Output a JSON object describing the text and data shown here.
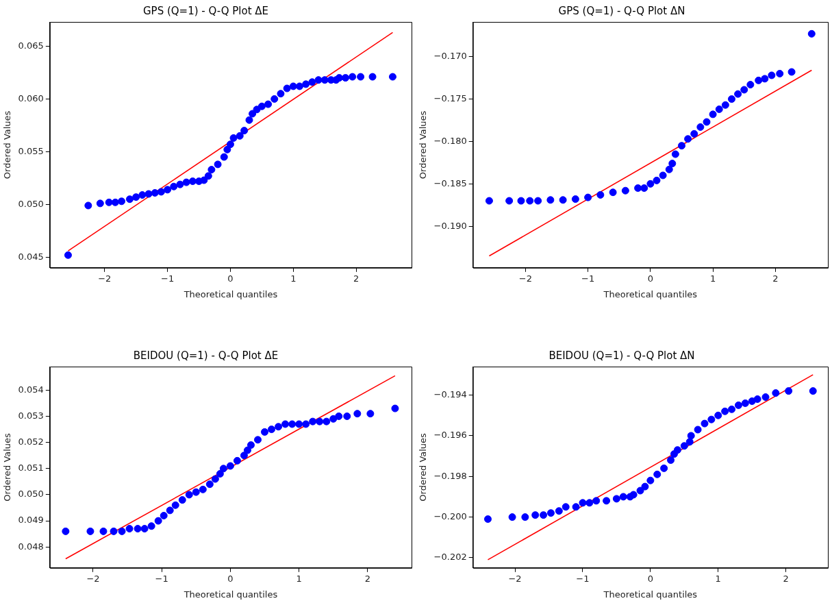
{
  "chart_data": [
    {
      "type": "scatter",
      "title": "GPS (Q=1) - Q-Q Plot ΔE",
      "xlabel": "Theoretical quantiles",
      "ylabel": "Ordered Values",
      "grid": false,
      "legend": false,
      "marker": "circle",
      "xlim": [
        -2.87,
        2.88
      ],
      "xticks": [
        -2,
        -1,
        0,
        1,
        2
      ],
      "ylim": [
        0.044,
        0.0673
      ],
      "yticks": [
        {
          "value": 0.045,
          "label": "0.045"
        },
        {
          "value": 0.05,
          "label": "0.050"
        },
        {
          "value": 0.055,
          "label": "0.055"
        },
        {
          "value": 0.06,
          "label": "0.060"
        },
        {
          "value": 0.065,
          "label": "0.065"
        }
      ],
      "series": [
        {
          "color": "#0000ff",
          "x": [
            -2.58,
            -2.26,
            -2.07,
            -1.93,
            -1.83,
            -1.73,
            -1.6,
            -1.5,
            -1.4,
            -1.3,
            -1.2,
            -1.1,
            -1.0,
            -0.9,
            -0.8,
            -0.7,
            -0.6,
            -0.5,
            -0.42,
            -0.35,
            -0.3,
            -0.2,
            -0.1,
            -0.05,
            0,
            0.05,
            0.15,
            0.22,
            0.3,
            0.35,
            0.42,
            0.5,
            0.6,
            0.7,
            0.8,
            0.9,
            1.0,
            1.1,
            1.2,
            1.3,
            1.4,
            1.5,
            1.6,
            1.68,
            1.73,
            1.83,
            1.94,
            2.07,
            2.26,
            2.58
          ],
          "values": [
            0.0452,
            0.0499,
            0.0501,
            0.0502,
            0.0502,
            0.0503,
            0.0505,
            0.0507,
            0.0509,
            0.051,
            0.0511,
            0.0512,
            0.0514,
            0.0517,
            0.0519,
            0.0521,
            0.0522,
            0.0522,
            0.0523,
            0.0527,
            0.0533,
            0.0538,
            0.0545,
            0.0552,
            0.0557,
            0.0563,
            0.0565,
            0.057,
            0.058,
            0.0586,
            0.059,
            0.0593,
            0.0595,
            0.06,
            0.0605,
            0.061,
            0.0612,
            0.0612,
            0.0614,
            0.0616,
            0.0618,
            0.0618,
            0.0618,
            0.0618,
            0.062,
            0.062,
            0.0621,
            0.0621,
            0.0621,
            0.0621
          ]
        },
        {
          "type": "line",
          "marker": "none",
          "color": "#ff0000",
          "x": [
            -2.58,
            2.58
          ],
          "values": [
            0.0456,
            0.0663
          ]
        }
      ]
    },
    {
      "type": "scatter",
      "title": "GPS (Q=1) - Q-Q Plot ΔN",
      "xlabel": "Theoretical quantiles",
      "ylabel": "Ordered Values",
      "grid": false,
      "legend": false,
      "marker": "circle",
      "xlim": [
        -2.84,
        2.84
      ],
      "xticks": [
        -2,
        -1,
        0,
        1,
        2
      ],
      "ylim": [
        -0.1949,
        -0.1659
      ],
      "yticks": [
        {
          "value": -0.19,
          "label": "−0.190"
        },
        {
          "value": -0.185,
          "label": "−0.185"
        },
        {
          "value": -0.18,
          "label": "−0.180"
        },
        {
          "value": -0.175,
          "label": "−0.175"
        },
        {
          "value": -0.17,
          "label": "−0.170"
        }
      ],
      "series": [
        {
          "color": "#0000ff",
          "x": [
            -2.58,
            -2.26,
            -2.07,
            -1.93,
            -1.8,
            -1.6,
            -1.4,
            -1.2,
            -1.0,
            -0.8,
            -0.6,
            -0.4,
            -0.2,
            -0.1,
            0,
            0.1,
            0.2,
            0.3,
            0.35,
            0.4,
            0.5,
            0.6,
            0.7,
            0.8,
            0.9,
            1.0,
            1.1,
            1.2,
            1.3,
            1.4,
            1.5,
            1.6,
            1.73,
            1.83,
            1.94,
            2.07,
            2.26,
            2.58
          ],
          "values": [
            -0.187,
            -0.187,
            -0.187,
            -0.187,
            -0.187,
            -0.1869,
            -0.1869,
            -0.1868,
            -0.1866,
            -0.1863,
            -0.186,
            -0.1858,
            -0.1855,
            -0.1855,
            -0.185,
            -0.1846,
            -0.184,
            -0.1833,
            -0.1826,
            -0.1815,
            -0.1805,
            -0.1797,
            -0.1791,
            -0.1783,
            -0.1777,
            -0.1768,
            -0.1762,
            -0.1757,
            -0.175,
            -0.1744,
            -0.1739,
            -0.1733,
            -0.1728,
            -0.1726,
            -0.1722,
            -0.172,
            -0.1718,
            -0.1673
          ]
        },
        {
          "type": "line",
          "marker": "none",
          "color": "#ff0000",
          "x": [
            -2.58,
            2.58
          ],
          "values": [
            -0.1935,
            -0.1716
          ]
        }
      ]
    },
    {
      "type": "scatter",
      "title": "BEIDOU (Q=1) - Q-Q Plot ΔE",
      "xlabel": "Theoretical quantiles",
      "ylabel": "Ordered Values",
      "grid": false,
      "legend": false,
      "marker": "circle",
      "xlim": [
        -2.63,
        2.64
      ],
      "xticks": [
        -2,
        -1,
        0,
        1,
        2
      ],
      "ylim": [
        0.0472,
        0.0549
      ],
      "yticks": [
        0.048,
        0.049,
        {
          "value": 0.05,
          "label": "0.050"
        },
        0.051,
        0.052,
        0.053,
        0.054
      ],
      "series": [
        {
          "color": "#0000ff",
          "x": [
            -2.4,
            -2.04,
            -1.85,
            -1.7,
            -1.58,
            -1.47,
            -1.35,
            -1.25,
            -1.15,
            -1.05,
            -0.97,
            -0.88,
            -0.8,
            -0.7,
            -0.6,
            -0.5,
            -0.4,
            -0.3,
            -0.22,
            -0.15,
            -0.1,
            0,
            0.1,
            0.2,
            0.25,
            0.3,
            0.4,
            0.5,
            0.6,
            0.7,
            0.8,
            0.9,
            1.0,
            1.1,
            1.2,
            1.3,
            1.4,
            1.5,
            1.58,
            1.7,
            1.85,
            2.04,
            2.4
          ],
          "values": [
            0.0486,
            0.0486,
            0.0486,
            0.0486,
            0.0486,
            0.0487,
            0.0487,
            0.0487,
            0.0488,
            0.049,
            0.0492,
            0.0494,
            0.0496,
            0.0498,
            0.05,
            0.0501,
            0.0502,
            0.0504,
            0.0506,
            0.0508,
            0.051,
            0.0511,
            0.0513,
            0.0515,
            0.0517,
            0.0519,
            0.0521,
            0.0524,
            0.0525,
            0.0526,
            0.0527,
            0.0527,
            0.0527,
            0.0527,
            0.0528,
            0.0528,
            0.0528,
            0.0529,
            0.053,
            0.053,
            0.0531,
            0.0531,
            0.0533
          ]
        },
        {
          "type": "line",
          "marker": "none",
          "color": "#ff0000",
          "x": [
            -2.4,
            2.4
          ],
          "values": [
            0.04755,
            0.05455
          ]
        }
      ]
    },
    {
      "type": "scatter",
      "title": "BEIDOU (Q=1) - Q-Q Plot ΔN",
      "xlabel": "Theoretical quantiles",
      "ylabel": "Ordered Values",
      "grid": false,
      "legend": false,
      "marker": "circle",
      "xlim": [
        -2.62,
        2.62
      ],
      "xticks": [
        -2,
        -1,
        0,
        1,
        2
      ],
      "ylim": [
        -0.2025,
        -0.1926
      ],
      "yticks": [
        {
          "value": -0.202,
          "label": "−0.202"
        },
        {
          "value": -0.2,
          "label": "−0.200"
        },
        {
          "value": -0.198,
          "label": "−0.198"
        },
        {
          "value": -0.196,
          "label": "−0.196"
        },
        {
          "value": -0.194,
          "label": "−0.194"
        }
      ],
      "series": [
        {
          "color": "#0000ff",
          "x": [
            -2.4,
            -2.04,
            -1.85,
            -1.7,
            -1.58,
            -1.47,
            -1.35,
            -1.25,
            -1.1,
            -1.0,
            -0.9,
            -0.8,
            -0.65,
            -0.5,
            -0.4,
            -0.3,
            -0.25,
            -0.15,
            -0.08,
            0,
            0.1,
            0.2,
            0.3,
            0.35,
            0.4,
            0.5,
            0.58,
            0.6,
            0.7,
            0.8,
            0.9,
            1.0,
            1.1,
            1.2,
            1.3,
            1.4,
            1.5,
            1.58,
            1.7,
            1.85,
            2.04,
            2.4
          ],
          "values": [
            -0.2001,
            -0.2,
            -0.2,
            -0.1999,
            -0.1999,
            -0.1998,
            -0.1997,
            -0.1995,
            -0.1995,
            -0.1993,
            -0.1993,
            -0.1992,
            -0.1992,
            -0.1991,
            -0.199,
            -0.199,
            -0.1989,
            -0.1987,
            -0.1985,
            -0.1982,
            -0.1979,
            -0.1976,
            -0.1972,
            -0.1969,
            -0.1967,
            -0.1965,
            -0.1963,
            -0.196,
            -0.1957,
            -0.1954,
            -0.1952,
            -0.195,
            -0.1948,
            -0.1947,
            -0.1945,
            -0.1944,
            -0.1943,
            -0.1942,
            -0.1941,
            -0.1939,
            -0.1938,
            -0.1938
          ]
        },
        {
          "type": "line",
          "marker": "none",
          "color": "#ff0000",
          "x": [
            -2.4,
            2.4
          ],
          "values": [
            -0.2021,
            -0.193
          ]
        }
      ]
    }
  ]
}
